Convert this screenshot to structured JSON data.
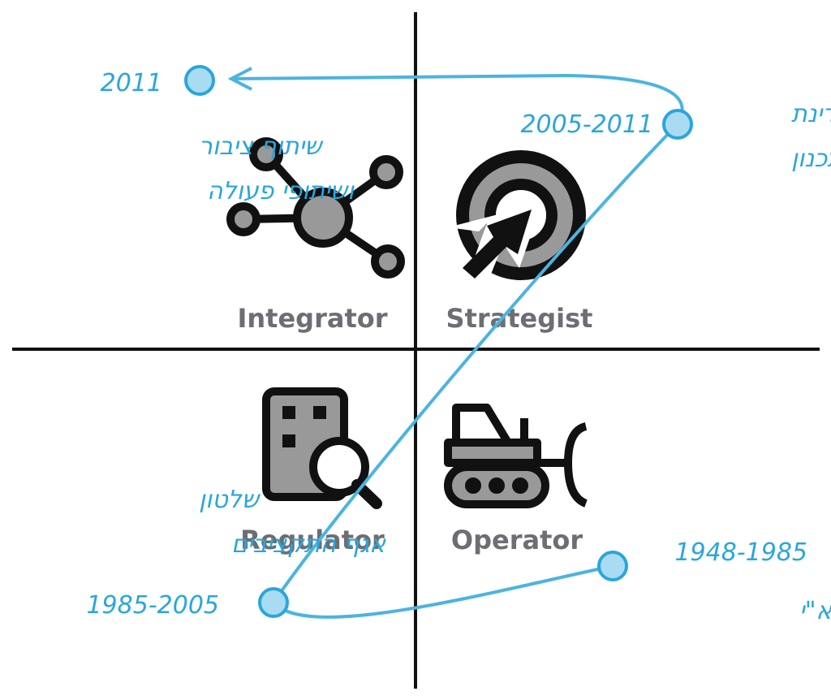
{
  "quadrants": [
    {
      "label": "Integrator"
    },
    {
      "label": "Strategist"
    },
    {
      "label": "Regulator"
    },
    {
      "label": "Operator"
    }
  ],
  "timeline": [
    {
      "period": "1948-1985",
      "label": [
        "מדינת מפא\"י"
      ]
    },
    {
      "period": "1985-2005",
      "label": [
        "שלטון",
        "אגף התקציבים"
      ]
    },
    {
      "period": "2005-2011",
      "label": [
        "מדינת",
        "התכנון"
      ]
    },
    {
      "period": "2011",
      "label": [
        "שיתוף ציבור",
        "ושיתופי פעולה"
      ]
    }
  ]
}
